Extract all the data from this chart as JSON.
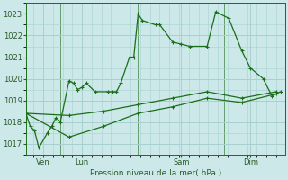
{
  "bg_color": "#cce8e8",
  "grid_color": "#a8d0d0",
  "line_color": "#1a6e1a",
  "text_color": "#2a5a2a",
  "xlabel": "Pression niveau de la mer( hPa )",
  "ylim": [
    1016.5,
    1023.5
  ],
  "yticks": [
    1017,
    1018,
    1019,
    1020,
    1021,
    1022,
    1023
  ],
  "xlim": [
    0,
    30
  ],
  "series1": {
    "x": [
      0,
      0.5,
      1.0,
      1.5,
      2.5,
      3.0,
      3.5,
      4.0,
      5.0,
      5.5,
      6.0,
      6.5,
      7.0,
      8.0,
      9.5,
      10.0,
      10.5,
      11.0,
      12.0,
      12.5,
      13.0,
      13.5,
      15.0,
      15.5,
      17.0,
      18.0,
      19.0,
      21.0,
      22.0,
      23.5,
      25.0,
      26.0,
      27.5,
      28.5,
      29.5
    ],
    "y": [
      1018.4,
      1017.8,
      1017.6,
      1016.8,
      1017.5,
      1017.8,
      1018.2,
      1018.0,
      1019.9,
      1019.8,
      1019.5,
      1019.6,
      1019.8,
      1019.4,
      1019.4,
      1019.4,
      1019.4,
      1019.8,
      1021.0,
      1021.0,
      1023.0,
      1022.7,
      1022.5,
      1022.5,
      1021.7,
      1021.6,
      1021.5,
      1021.5,
      1023.1,
      1022.8,
      1021.3,
      1020.5,
      1020.0,
      1019.2,
      1019.4
    ]
  },
  "series2": {
    "x": [
      0,
      5,
      9,
      13,
      17,
      21,
      25,
      29
    ],
    "y": [
      1018.4,
      1018.3,
      1018.5,
      1018.8,
      1019.1,
      1019.4,
      1019.1,
      1019.4
    ]
  },
  "series3": {
    "x": [
      0,
      5,
      9,
      13,
      17,
      21,
      25,
      29
    ],
    "y": [
      1018.4,
      1017.3,
      1017.8,
      1018.4,
      1018.7,
      1019.1,
      1018.9,
      1019.3
    ]
  },
  "vlines_x": [
    4,
    13,
    23
  ],
  "xtick_positions": [
    2,
    6.5,
    18,
    26
  ],
  "xtick_labels": [
    "Ven",
    "Lun",
    "Sam",
    "Dim"
  ]
}
